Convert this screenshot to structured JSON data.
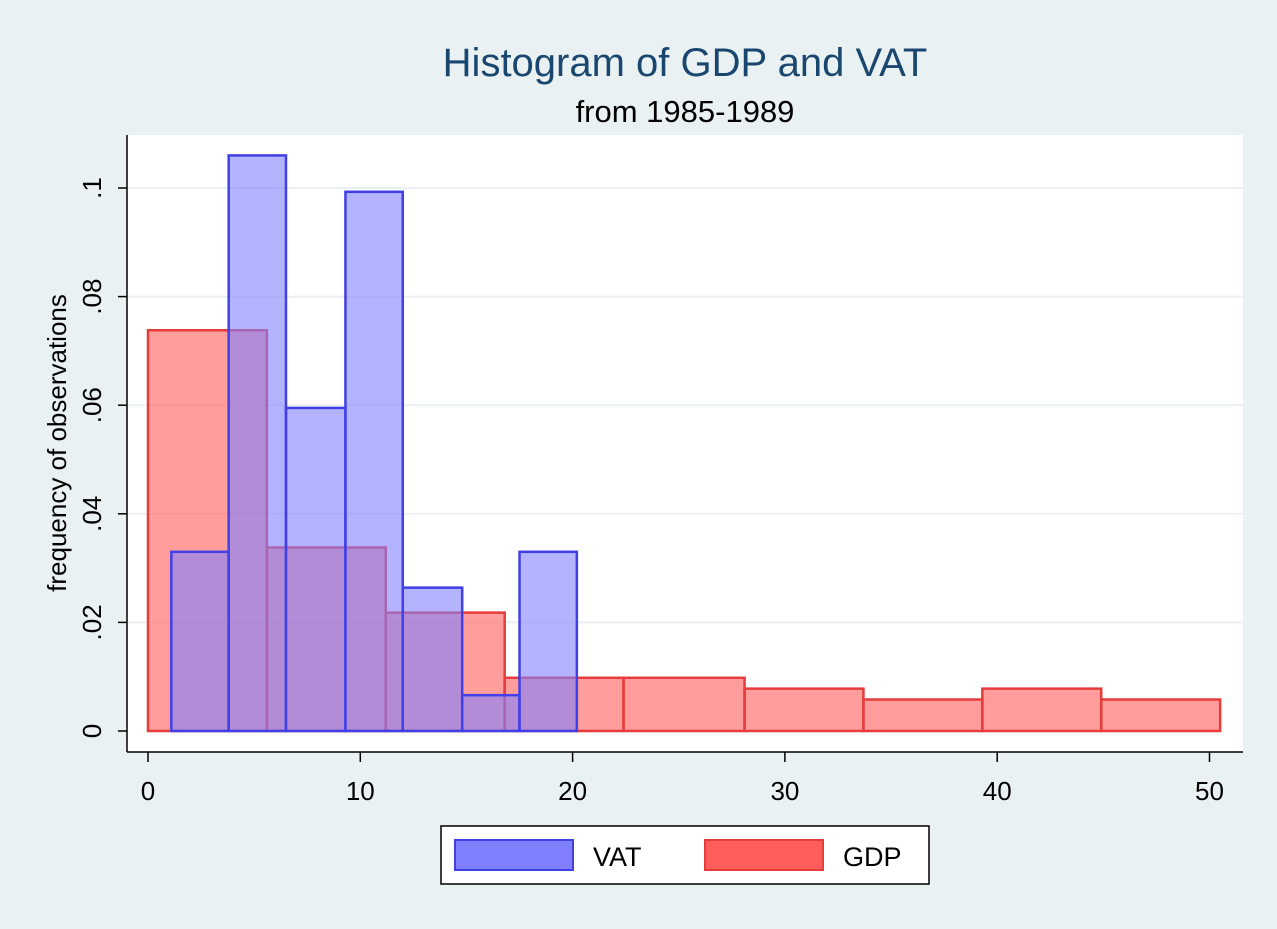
{
  "chart_data": {
    "type": "bar",
    "title": "Histogram of GDP and VAT",
    "subtitle": "from 1985-1989",
    "xlabel": "",
    "ylabel": "frequency of observations",
    "xlim": [
      0,
      51.5
    ],
    "ylim": [
      0,
      0.11
    ],
    "x_ticks": [
      0,
      10,
      20,
      30,
      40,
      50
    ],
    "x_tick_labels": [
      "0",
      "10",
      "20",
      "30",
      "40",
      "50"
    ],
    "y_ticks": [
      0,
      0.02,
      0.04,
      0.06,
      0.08,
      0.1
    ],
    "y_tick_labels": [
      "0",
      ".02",
      ".04",
      ".06",
      ".08",
      ".1"
    ],
    "grid": true,
    "legend_position": "bottom",
    "series": [
      {
        "name": "VAT",
        "fill": "#8080ff",
        "stroke": "#4040e6",
        "bins": [
          {
            "x0": 1.1,
            "x1": 3.8,
            "value": 0.033
          },
          {
            "x0": 3.8,
            "x1": 6.5,
            "value": 0.106
          },
          {
            "x0": 6.5,
            "x1": 9.3,
            "value": 0.0595
          },
          {
            "x0": 9.3,
            "x1": 12.0,
            "value": 0.0993
          },
          {
            "x0": 12.0,
            "x1": 14.8,
            "value": 0.0264
          },
          {
            "x0": 14.8,
            "x1": 17.5,
            "value": 0.0066
          },
          {
            "x0": 17.5,
            "x1": 20.2,
            "value": 0.033
          }
        ]
      },
      {
        "name": "GDP",
        "fill": "#ff5c5c",
        "stroke": "#e63c3c",
        "bins": [
          {
            "x0": 0.0,
            "x1": 5.6,
            "value": 0.0738
          },
          {
            "x0": 5.6,
            "x1": 11.2,
            "value": 0.0338
          },
          {
            "x0": 11.2,
            "x1": 16.8,
            "value": 0.0218
          },
          {
            "x0": 16.8,
            "x1": 22.4,
            "value": 0.0098
          },
          {
            "x0": 22.4,
            "x1": 28.1,
            "value": 0.0098
          },
          {
            "x0": 28.1,
            "x1": 33.7,
            "value": 0.0078
          },
          {
            "x0": 33.7,
            "x1": 39.3,
            "value": 0.0058
          },
          {
            "x0": 39.3,
            "x1": 44.9,
            "value": 0.0078
          },
          {
            "x0": 44.9,
            "x1": 50.5,
            "value": 0.0058
          }
        ]
      }
    ]
  }
}
